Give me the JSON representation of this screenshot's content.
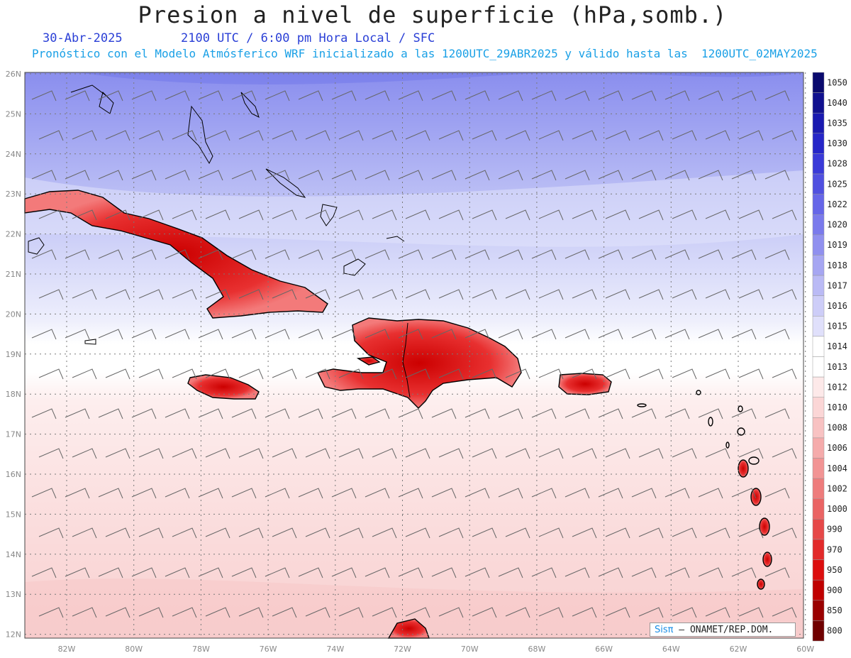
{
  "header": {
    "title": "Presion a nivel de superficie (hPa,somb.)",
    "date": "30-Abr-2025",
    "time_info": "2100 UTC / 6:00 pm Hora Local / SFC",
    "forecast_info": "Pronóstico con el Modelo Atmósferico WRF inicializado a las 1200UTC_29ABR2025 y válido hasta las  1200UTC_02MAY2025"
  },
  "map": {
    "lat_labels": [
      "26N",
      "25N",
      "24N",
      "23N",
      "22N",
      "21N",
      "20N",
      "19N",
      "18N",
      "17N",
      "16N",
      "15N",
      "14N",
      "13N",
      "12N"
    ],
    "lon_labels": [
      "82W",
      "80W",
      "78W",
      "76W",
      "74W",
      "72W",
      "70W",
      "68W",
      "66W",
      "64W",
      "62W",
      "60W"
    ],
    "features": [
      "Cuba",
      "Jamaica",
      "Haiti",
      "Dominican Republic",
      "Puerto Rico",
      "Bahamas",
      "Lesser Antilles"
    ],
    "colors": {
      "low": "#e00000",
      "mid": "#ffffff",
      "high": "#2f38c8",
      "coast": "#000000",
      "grid": "#888888"
    }
  },
  "colorbar": {
    "levels": [
      "1050",
      "1040",
      "1035",
      "1030",
      "1028",
      "1025",
      "1022",
      "1020",
      "1019",
      "1018",
      "1017",
      "1016",
      "1015",
      "1014",
      "1013",
      "1012",
      "1010",
      "1008",
      "1006",
      "1004",
      "1002",
      "1000",
      "990",
      "970",
      "950",
      "900",
      "850",
      "800"
    ],
    "colors": [
      "#0a0a6e",
      "#11118f",
      "#1a1ab0",
      "#2626c8",
      "#3a3ad8",
      "#5050e0",
      "#6666e8",
      "#7a7aec",
      "#9090ef",
      "#a6a6f2",
      "#babaf5",
      "#cdcdf8",
      "#e0e0fb",
      "#ffffff",
      "#ffffff",
      "#fde9e9",
      "#fbd6d6",
      "#f8c2c2",
      "#f5abab",
      "#f29494",
      "#ee7c7c",
      "#ea6464",
      "#e64848",
      "#e22a2a",
      "#dc0e0e",
      "#c00000",
      "#9a0000",
      "#700000"
    ]
  },
  "credit": {
    "brand": "Sisπ",
    "text": "– ONAMET/REP.DOM."
  }
}
